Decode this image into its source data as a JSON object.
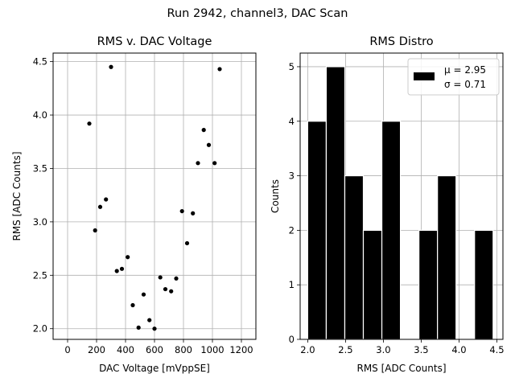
{
  "suptitle": "Run 2942, channel3, DAC Scan",
  "chart_data": [
    {
      "type": "scatter",
      "title": "RMS v. DAC Voltage",
      "xlabel": "DAC Voltage [mVppSE]",
      "ylabel": "RMS [ADC Counts]",
      "xlim": [
        -100,
        1300
      ],
      "ylim": [
        1.9,
        4.58
      ],
      "xticks": [
        0,
        200,
        400,
        600,
        800,
        1000,
        1200
      ],
      "yticks": [
        2.0,
        2.5,
        3.0,
        3.5,
        4.0,
        4.5
      ],
      "ytick_labels": [
        "2.0",
        "2.5",
        "3.0",
        "3.5",
        "4.0",
        "4.5"
      ],
      "grid": true,
      "marker_color": "#000000",
      "points": [
        {
          "x": 150,
          "y": 3.92
        },
        {
          "x": 190,
          "y": 2.92
        },
        {
          "x": 225,
          "y": 3.14
        },
        {
          "x": 265,
          "y": 3.21
        },
        {
          "x": 300,
          "y": 4.45
        },
        {
          "x": 340,
          "y": 2.54
        },
        {
          "x": 375,
          "y": 2.56
        },
        {
          "x": 415,
          "y": 2.67
        },
        {
          "x": 450,
          "y": 2.22
        },
        {
          "x": 490,
          "y": 2.01
        },
        {
          "x": 525,
          "y": 2.32
        },
        {
          "x": 565,
          "y": 2.08
        },
        {
          "x": 600,
          "y": 2.0
        },
        {
          "x": 640,
          "y": 2.48
        },
        {
          "x": 675,
          "y": 2.37
        },
        {
          "x": 715,
          "y": 2.35
        },
        {
          "x": 750,
          "y": 2.47
        },
        {
          "x": 790,
          "y": 3.1
        },
        {
          "x": 825,
          "y": 2.8
        },
        {
          "x": 865,
          "y": 3.08
        },
        {
          "x": 900,
          "y": 3.55
        },
        {
          "x": 940,
          "y": 3.86
        },
        {
          "x": 975,
          "y": 3.72
        },
        {
          "x": 1015,
          "y": 3.55
        },
        {
          "x": 1050,
          "y": 4.43
        }
      ]
    },
    {
      "type": "bar",
      "subtype": "histogram",
      "title": "RMS Distro",
      "xlabel": "RMS [ADC Counts]",
      "ylabel": "Counts",
      "xlim": [
        1.9,
        4.58
      ],
      "ylim": [
        0,
        5.25
      ],
      "xticks": [
        2.0,
        2.5,
        3.0,
        3.5,
        4.0,
        4.5
      ],
      "xtick_labels": [
        "2.0",
        "2.5",
        "3.0",
        "3.5",
        "4.0",
        "4.5"
      ],
      "yticks": [
        0,
        1,
        2,
        3,
        4,
        5
      ],
      "grid": true,
      "bar_color": "#000000",
      "edge_color": "#ffffff",
      "bins": [
        {
          "start": 2.0,
          "end": 2.245,
          "count": 4
        },
        {
          "start": 2.245,
          "end": 2.49,
          "count": 5
        },
        {
          "start": 2.49,
          "end": 2.735,
          "count": 3
        },
        {
          "start": 2.735,
          "end": 2.98,
          "count": 2
        },
        {
          "start": 2.98,
          "end": 3.225,
          "count": 4
        },
        {
          "start": 3.225,
          "end": 3.47,
          "count": 0
        },
        {
          "start": 3.47,
          "end": 3.715,
          "count": 2
        },
        {
          "start": 3.715,
          "end": 3.96,
          "count": 3
        },
        {
          "start": 3.96,
          "end": 4.205,
          "count": 0
        },
        {
          "start": 4.205,
          "end": 4.45,
          "count": 2
        }
      ],
      "legend": {
        "placement": "top-right",
        "lines": [
          "μ = 2.95",
          "σ = 0.71"
        ]
      }
    }
  ]
}
